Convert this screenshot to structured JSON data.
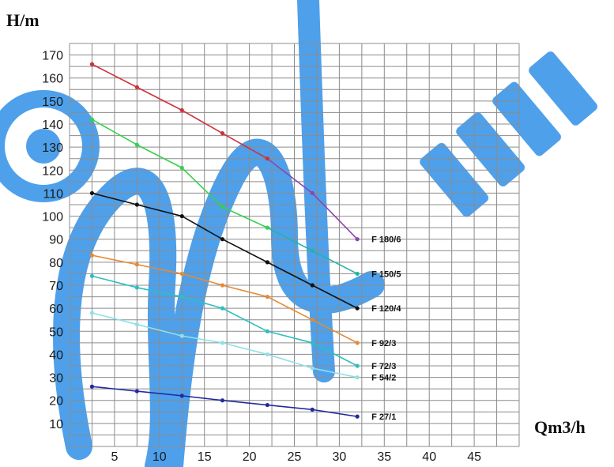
{
  "chart_data": {
    "type": "line",
    "ylabel": "H/m",
    "xlabel": "Qm3/h",
    "xlim": [
      0,
      50
    ],
    "ylim": [
      0,
      175
    ],
    "grid": true,
    "x_ticks": [
      5,
      10,
      15,
      20,
      25,
      30,
      35,
      40,
      45
    ],
    "y_ticks": [
      10,
      20,
      30,
      40,
      50,
      60,
      70,
      80,
      90,
      100,
      110,
      120,
      130,
      140,
      150,
      160,
      170
    ],
    "watermark_color": "#2f8fe8",
    "series": [
      {
        "name": "F 180/6",
        "color": "#d0303a",
        "end_color": "#8e44ad",
        "points": [
          [
            2.5,
            166
          ],
          [
            7.5,
            156
          ],
          [
            12.5,
            146
          ],
          [
            17,
            136
          ],
          [
            22,
            125
          ],
          [
            27,
            110
          ],
          [
            32,
            90
          ]
        ]
      },
      {
        "name": "F 150/5",
        "color": "#37d04c",
        "end_color": "#1fb5a5",
        "points": [
          [
            2.5,
            142
          ],
          [
            7.5,
            131
          ],
          [
            12.5,
            121
          ],
          [
            17,
            104
          ],
          [
            22,
            95
          ],
          [
            27,
            85
          ],
          [
            32,
            75
          ]
        ]
      },
      {
        "name": "F 120/4",
        "color": "#111111",
        "points": [
          [
            2.5,
            110
          ],
          [
            7.5,
            105
          ],
          [
            12.5,
            100
          ],
          [
            17,
            90
          ],
          [
            22,
            80
          ],
          [
            27,
            70
          ],
          [
            32,
            60
          ]
        ]
      },
      {
        "name": "F 92/3",
        "color": "#e58a33",
        "points": [
          [
            2.5,
            83
          ],
          [
            7.5,
            79
          ],
          [
            12.5,
            75
          ],
          [
            17,
            70
          ],
          [
            22,
            65
          ],
          [
            27,
            55
          ],
          [
            32,
            45
          ]
        ]
      },
      {
        "name": "F 72/3",
        "color": "#2cbfbf",
        "points": [
          [
            2.5,
            74
          ],
          [
            7.5,
            69
          ],
          [
            12.5,
            65
          ],
          [
            17,
            60
          ],
          [
            22,
            50
          ],
          [
            27,
            45
          ],
          [
            32,
            35
          ]
        ]
      },
      {
        "name": "F 54/2",
        "color": "#8fe0e6",
        "points": [
          [
            2.5,
            58
          ],
          [
            7.5,
            53
          ],
          [
            12.5,
            48
          ],
          [
            17,
            45
          ],
          [
            22,
            40
          ],
          [
            27,
            34
          ],
          [
            32,
            30
          ]
        ]
      },
      {
        "name": "F 27/1",
        "color": "#232a9e",
        "points": [
          [
            2.5,
            26
          ],
          [
            7.5,
            24
          ],
          [
            12.5,
            22
          ],
          [
            17,
            20
          ],
          [
            22,
            18
          ],
          [
            27,
            16
          ],
          [
            32,
            13
          ]
        ]
      }
    ]
  }
}
